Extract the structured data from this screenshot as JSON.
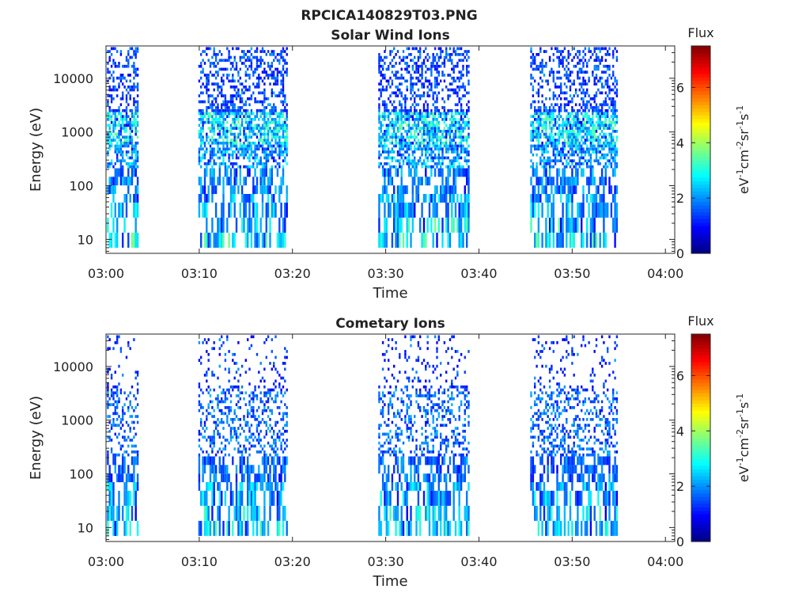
{
  "figure_title": "RPCICA140829T03.PNG",
  "colorbar": {
    "label": "Flux",
    "unit_main": "eV",
    "unit_parts": [
      "eV",
      "-1",
      "cm",
      "-2",
      "sr",
      "-1",
      "s",
      "-1"
    ],
    "ticks": [
      "0",
      "2",
      "4",
      "6"
    ],
    "range": [
      0,
      7.5
    ],
    "colormap": "jet"
  },
  "chart_data": [
    {
      "type": "heatmap",
      "title": "Solar Wind Ions",
      "xlabel": "Time",
      "ylabel": "Energy (eV)",
      "xticks": [
        "03:00",
        "03:10",
        "03:20",
        "03:30",
        "03:40",
        "03:50",
        "04:00"
      ],
      "xlim_minutes": [
        0,
        61
      ],
      "yscale": "log",
      "yticks": [
        "10",
        "100",
        "1000",
        "10000"
      ],
      "ylim": [
        5.5,
        40000
      ],
      "bursts_minutes": [
        [
          0.1,
          3.4
        ],
        [
          9.9,
          19.4
        ],
        [
          29.2,
          38.9
        ],
        [
          45.5,
          54.9
        ]
      ],
      "peak_flux_bands": [
        {
          "energy_ev": 10,
          "flux": 3.2
        },
        {
          "energy_ev": 40,
          "flux": 2.6
        },
        {
          "energy_ev": 100,
          "flux": 2.2
        },
        {
          "energy_ev": 300,
          "flux": 2.6
        },
        {
          "energy_ev": 900,
          "flux": 3.2
        },
        {
          "energy_ev": 5000,
          "flux": 1.6
        }
      ]
    },
    {
      "type": "heatmap",
      "title": "Cometary Ions",
      "xlabel": "Time",
      "ylabel": "Energy (eV)",
      "xticks": [
        "03:00",
        "03:10",
        "03:20",
        "03:30",
        "03:40",
        "03:50",
        "04:00"
      ],
      "xlim_minutes": [
        0,
        61
      ],
      "yscale": "log",
      "yticks": [
        "10",
        "100",
        "1000",
        "10000"
      ],
      "ylim": [
        5.5,
        40000
      ],
      "bursts_minutes": [
        [
          0.1,
          3.4
        ],
        [
          9.9,
          19.4
        ],
        [
          29.2,
          38.9
        ],
        [
          45.5,
          54.9
        ]
      ],
      "peak_flux_bands": [
        {
          "energy_ev": 10,
          "flux": 3.0
        },
        {
          "energy_ev": 40,
          "flux": 2.6
        },
        {
          "energy_ev": 100,
          "flux": 2.0
        },
        {
          "energy_ev": 1000,
          "flux": 2.0
        },
        {
          "energy_ev": 10000,
          "flux": 1.4
        }
      ]
    }
  ]
}
